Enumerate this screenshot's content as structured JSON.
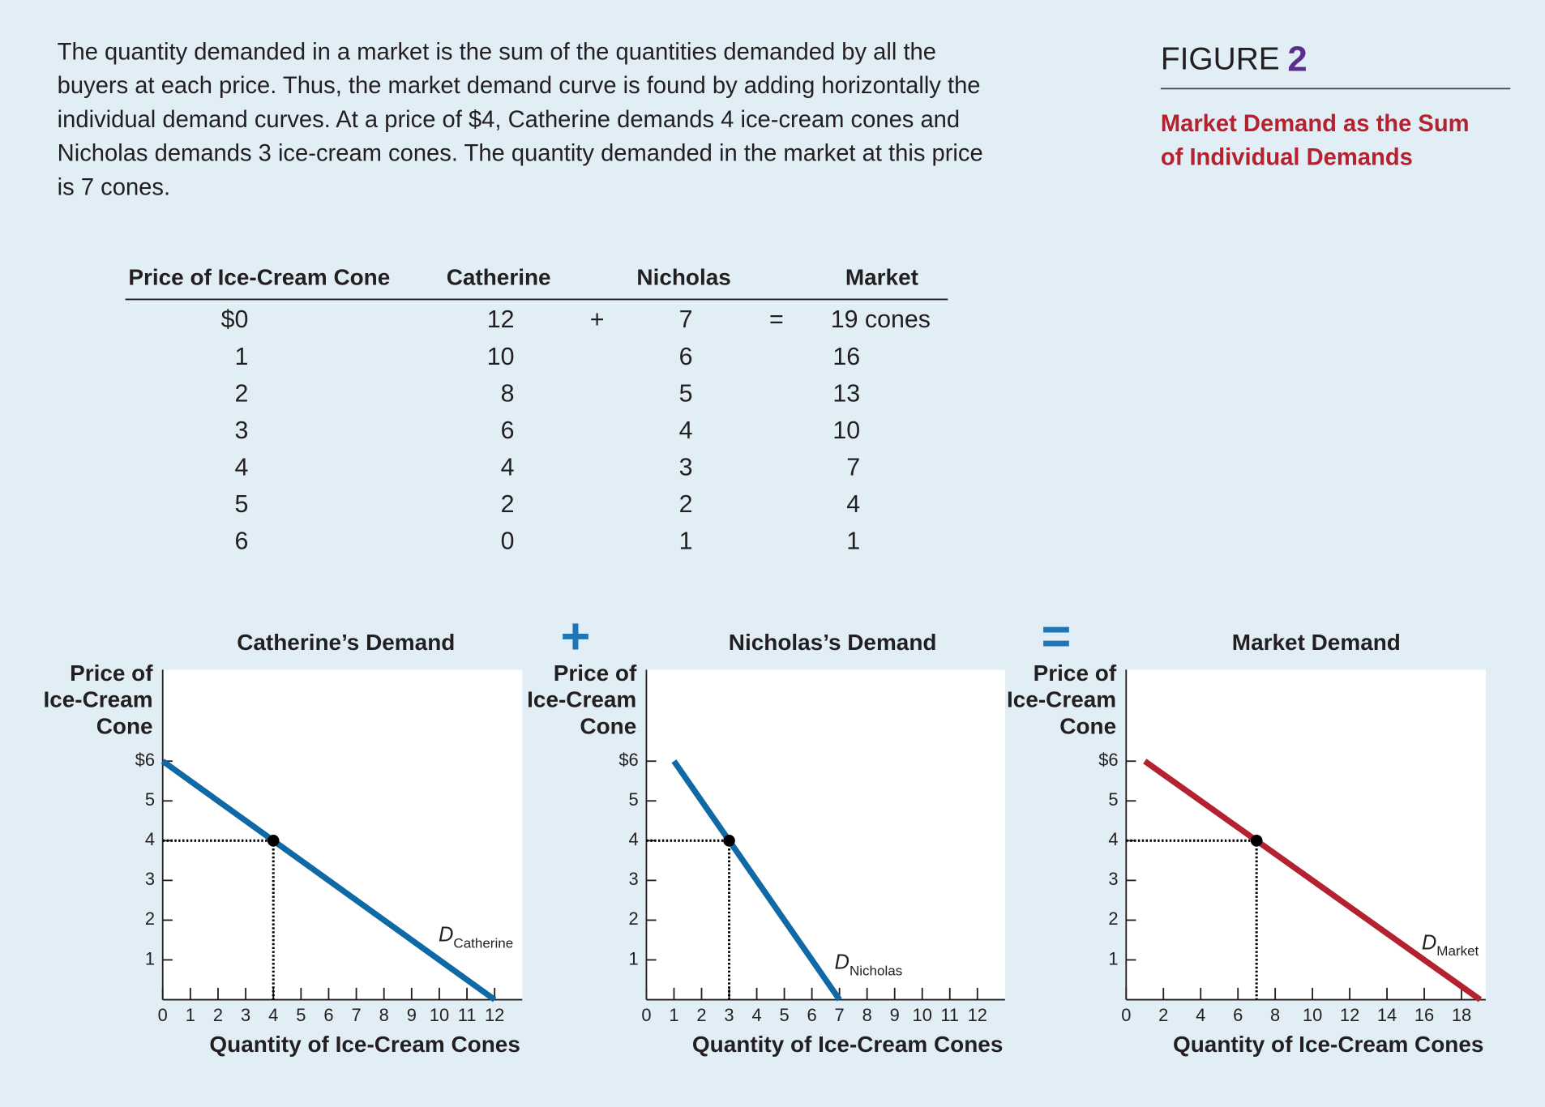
{
  "caption": [
    "The quantity demanded in a market is the sum of the quantities demanded by all the",
    "buyers at each price. Thus, the market demand curve is found by adding horizontally the",
    "individual demand curves. At a price of $4, Catherine demands 4 ice-cream cones and",
    "Nicholas demands 3 ice-cream cones. The quantity demanded in the market at this price",
    "is 7 cones."
  ],
  "figure": {
    "label": "FIGURE",
    "number": "2",
    "title": [
      "Market Demand as the Sum",
      "of Individual Demands"
    ]
  },
  "table": {
    "header": [
      "Price of Ice-Cream Cone",
      "Catherine",
      "Nicholas",
      "Market"
    ],
    "operators": [
      "+",
      "="
    ],
    "rows": [
      [
        "$0",
        12,
        7,
        "19 cones"
      ],
      [
        1,
        10,
        6,
        16
      ],
      [
        2,
        8,
        5,
        13
      ],
      [
        3,
        6,
        4,
        10
      ],
      [
        4,
        4,
        3,
        7
      ],
      [
        5,
        2,
        2,
        4
      ],
      [
        6,
        0,
        1,
        1
      ]
    ]
  },
  "chart_operators": [
    "+",
    "="
  ],
  "chart_data": [
    {
      "type": "line",
      "title": "Catherine’s Demand",
      "xlabel": "Quantity of Ice-Cream Cones",
      "ylabel": [
        "Price of",
        "Ice-Cream",
        "Cone"
      ],
      "x": [
        12,
        10,
        8,
        6,
        4,
        2,
        0
      ],
      "series": [
        {
          "label": {
            "letter": "D",
            "subscript": "Catherine"
          },
          "color": "#0f69a5",
          "values": [
            0,
            1,
            2,
            3,
            4,
            5,
            6
          ]
        }
      ],
      "highlight": {
        "x": 4,
        "y": 4
      },
      "xlim": [
        0,
        13
      ],
      "ylim": [
        0,
        8.3
      ],
      "xticks": [
        0,
        1,
        2,
        3,
        4,
        5,
        6,
        7,
        8,
        9,
        10,
        11,
        12
      ],
      "yticks": [
        1,
        2,
        3,
        4,
        5,
        {
          "value": 6,
          "label": "$6"
        }
      ]
    },
    {
      "type": "line",
      "title": "Nicholas’s Demand",
      "xlabel": "Quantity of Ice-Cream Cones",
      "ylabel": [
        "Price of",
        "Ice-Cream",
        "Cone"
      ],
      "x": [
        7,
        6,
        5,
        4,
        3,
        2,
        1
      ],
      "series": [
        {
          "label": {
            "letter": "D",
            "subscript": "Nicholas"
          },
          "color": "#0f69a5",
          "values": [
            0,
            1,
            2,
            3,
            4,
            5,
            6
          ]
        }
      ],
      "highlight": {
        "x": 3,
        "y": 4
      },
      "xlim": [
        0,
        13
      ],
      "ylim": [
        0,
        8.3
      ],
      "xticks": [
        0,
        1,
        2,
        3,
        4,
        5,
        6,
        7,
        8,
        9,
        10,
        11,
        12
      ],
      "yticks": [
        1,
        2,
        3,
        4,
        5,
        {
          "value": 6,
          "label": "$6"
        }
      ]
    },
    {
      "type": "line",
      "title": "Market Demand",
      "xlabel": "Quantity of Ice-Cream Cones",
      "ylabel": [
        "Price of",
        "Ice-Cream",
        "Cone"
      ],
      "x": [
        19,
        16,
        13,
        10,
        7,
        4,
        1
      ],
      "series": [
        {
          "label": {
            "letter": "D",
            "subscript": "Market"
          },
          "color": "#b5222f",
          "values": [
            0,
            1,
            2,
            3,
            4,
            5,
            6
          ]
        }
      ],
      "highlight": {
        "x": 7,
        "y": 4
      },
      "xlim": [
        0,
        19.3
      ],
      "ylim": [
        0,
        8.3
      ],
      "xticks": [
        0,
        2,
        4,
        6,
        8,
        10,
        12,
        14,
        16,
        18
      ],
      "yticks": [
        1,
        2,
        3,
        4,
        5,
        {
          "value": 6,
          "label": "$6"
        }
      ]
    }
  ]
}
